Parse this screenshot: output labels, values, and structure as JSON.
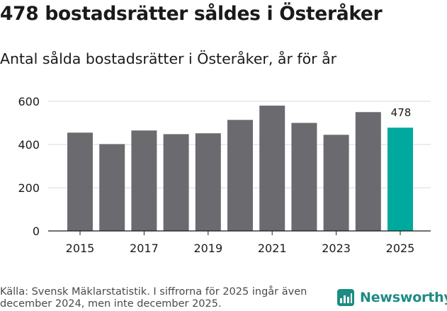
{
  "header": {
    "title": "478 bostadsrätter såldes i Österåker",
    "subtitle": "Antal sålda bostadsrätter i Österåker, år för år"
  },
  "footer": {
    "source": "Källa: Svensk Mäklarstatistik. I siffrorna för 2025 ingår även december 2024, men inte december 2025.",
    "brand": "Newsworthy"
  },
  "colors": {
    "bar": "#6b6a6e",
    "highlight": "#00a99d",
    "grid": "#d9d9d9",
    "brand": "#1d8c83"
  },
  "chart_data": {
    "type": "bar",
    "title": "Antal sålda bostadsrätter i Österåker, år för år",
    "xlabel": "",
    "ylabel": "",
    "ylim": [
      0,
      600
    ],
    "yticks": [
      0,
      200,
      400,
      600
    ],
    "categories": [
      2015,
      2016,
      2017,
      2018,
      2019,
      2020,
      2021,
      2022,
      2023,
      2024,
      2025
    ],
    "xtick_labels": [
      "2015",
      "2017",
      "2019",
      "2021",
      "2023",
      "2025"
    ],
    "values": [
      455,
      402,
      465,
      448,
      452,
      514,
      580,
      500,
      445,
      550,
      478
    ],
    "highlight_index": 10,
    "data_labels": [
      {
        "index": 10,
        "text": "478"
      }
    ]
  }
}
